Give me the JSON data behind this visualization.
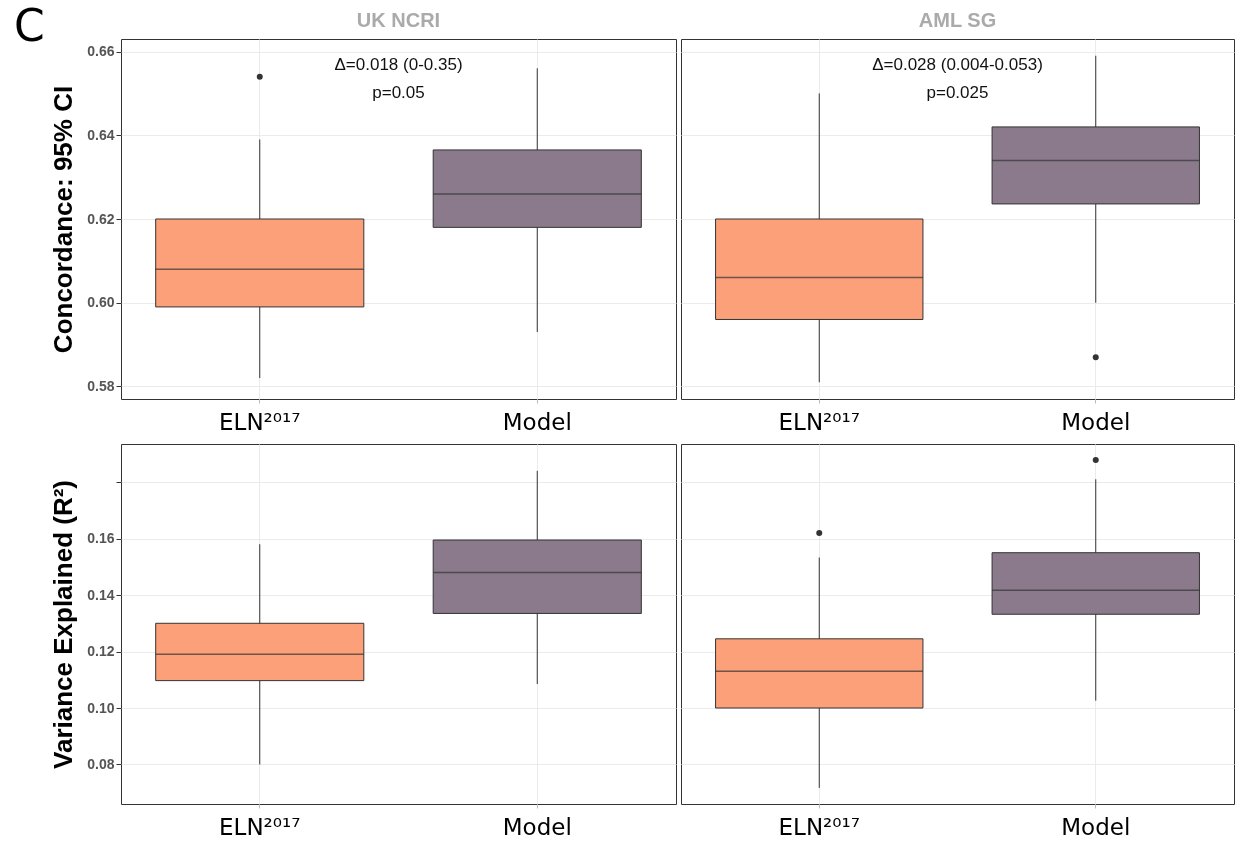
{
  "chart_data": [
    {
      "type": "box",
      "title": "UK NCRI",
      "ylabel": "Concordance: 95% CI",
      "categories": [
        "ELN²⁰¹⁷",
        "Model"
      ],
      "colors": [
        "#fca07a",
        "#8b7a8b"
      ],
      "boxes": [
        {
          "low": 0.582,
          "q1": 0.599,
          "median": 0.608,
          "q3": 0.62,
          "high": 0.639,
          "outliers": [
            0.654
          ]
        },
        {
          "low": 0.593,
          "q1": 0.618,
          "median": 0.626,
          "q3": 0.6365,
          "high": 0.656
        }
      ],
      "ylim": [
        0.577,
        0.663
      ],
      "yticks": [
        0.58,
        {
          "value": 0.6,
          "label": "0.60"
        },
        0.62,
        0.64,
        0.66
      ],
      "grid": true,
      "annotations": [
        "C",
        "Δ=0.018 (0-0.35)",
        "p=0.05"
      ]
    },
    {
      "type": "box",
      "title": "AML SG",
      "categories": [
        "ELN²⁰¹⁷",
        "Model"
      ],
      "colors": [
        "#fca07a",
        "#8b7a8b"
      ],
      "boxes": [
        {
          "low": 0.581,
          "q1": 0.596,
          "median": 0.606,
          "q3": 0.62,
          "high": 0.65
        },
        {
          "low": 0.6,
          "q1": 0.6236,
          "median": 0.634,
          "q3": 0.642,
          "high": 0.659,
          "outliers": [
            0.587
          ]
        }
      ],
      "ylim": [
        0.577,
        0.663
      ],
      "yticks": [
        0.58,
        0.6,
        0.62,
        0.64,
        0.66
      ],
      "grid": true,
      "tick_labels": "x",
      "annotations": [
        "Δ=0.028 (0.004-0.053)",
        "p=0.025"
      ]
    },
    {
      "type": "box",
      "ylabel": "Variance Explained (R²)",
      "categories": [
        "ELN²⁰¹⁷",
        "Model"
      ],
      "colors": [
        "#fca07a",
        "#8b7a8b"
      ],
      "boxes": [
        {
          "low": 0.08,
          "q1": 0.1097,
          "median": 0.119,
          "q3": 0.13,
          "high": 0.158
        },
        {
          "low": 0.1085,
          "q1": 0.1335,
          "median": 0.148,
          "q3": 0.1595,
          "high": 0.184
        }
      ],
      "ylim": [
        0.066,
        0.1935
      ],
      "yticks": [
        0.08,
        {
          "value": 0.1,
          "label": "0.10"
        },
        0.12,
        0.14,
        0.16,
        {
          "value": 0.18,
          "label": null
        }
      ],
      "grid": true
    },
    {
      "type": "box",
      "categories": [
        "ELN²⁰¹⁷",
        "Model"
      ],
      "colors": [
        "#fca07a",
        "#8b7a8b"
      ],
      "boxes": [
        {
          "low": 0.0717,
          "q1": 0.1,
          "median": 0.113,
          "q3": 0.1245,
          "high": 0.1533,
          "outliers": [
            0.162
          ]
        },
        {
          "low": 0.1026,
          "q1": 0.1332,
          "median": 0.1417,
          "q3": 0.155,
          "high": 0.181,
          "outliers": [
            0.1878
          ]
        }
      ],
      "ylim": [
        0.066,
        0.1935
      ],
      "yticks": [
        0.08,
        0.1,
        0.12,
        0.14,
        0.16,
        0.18
      ],
      "grid": true,
      "tick_labels": "x"
    }
  ]
}
